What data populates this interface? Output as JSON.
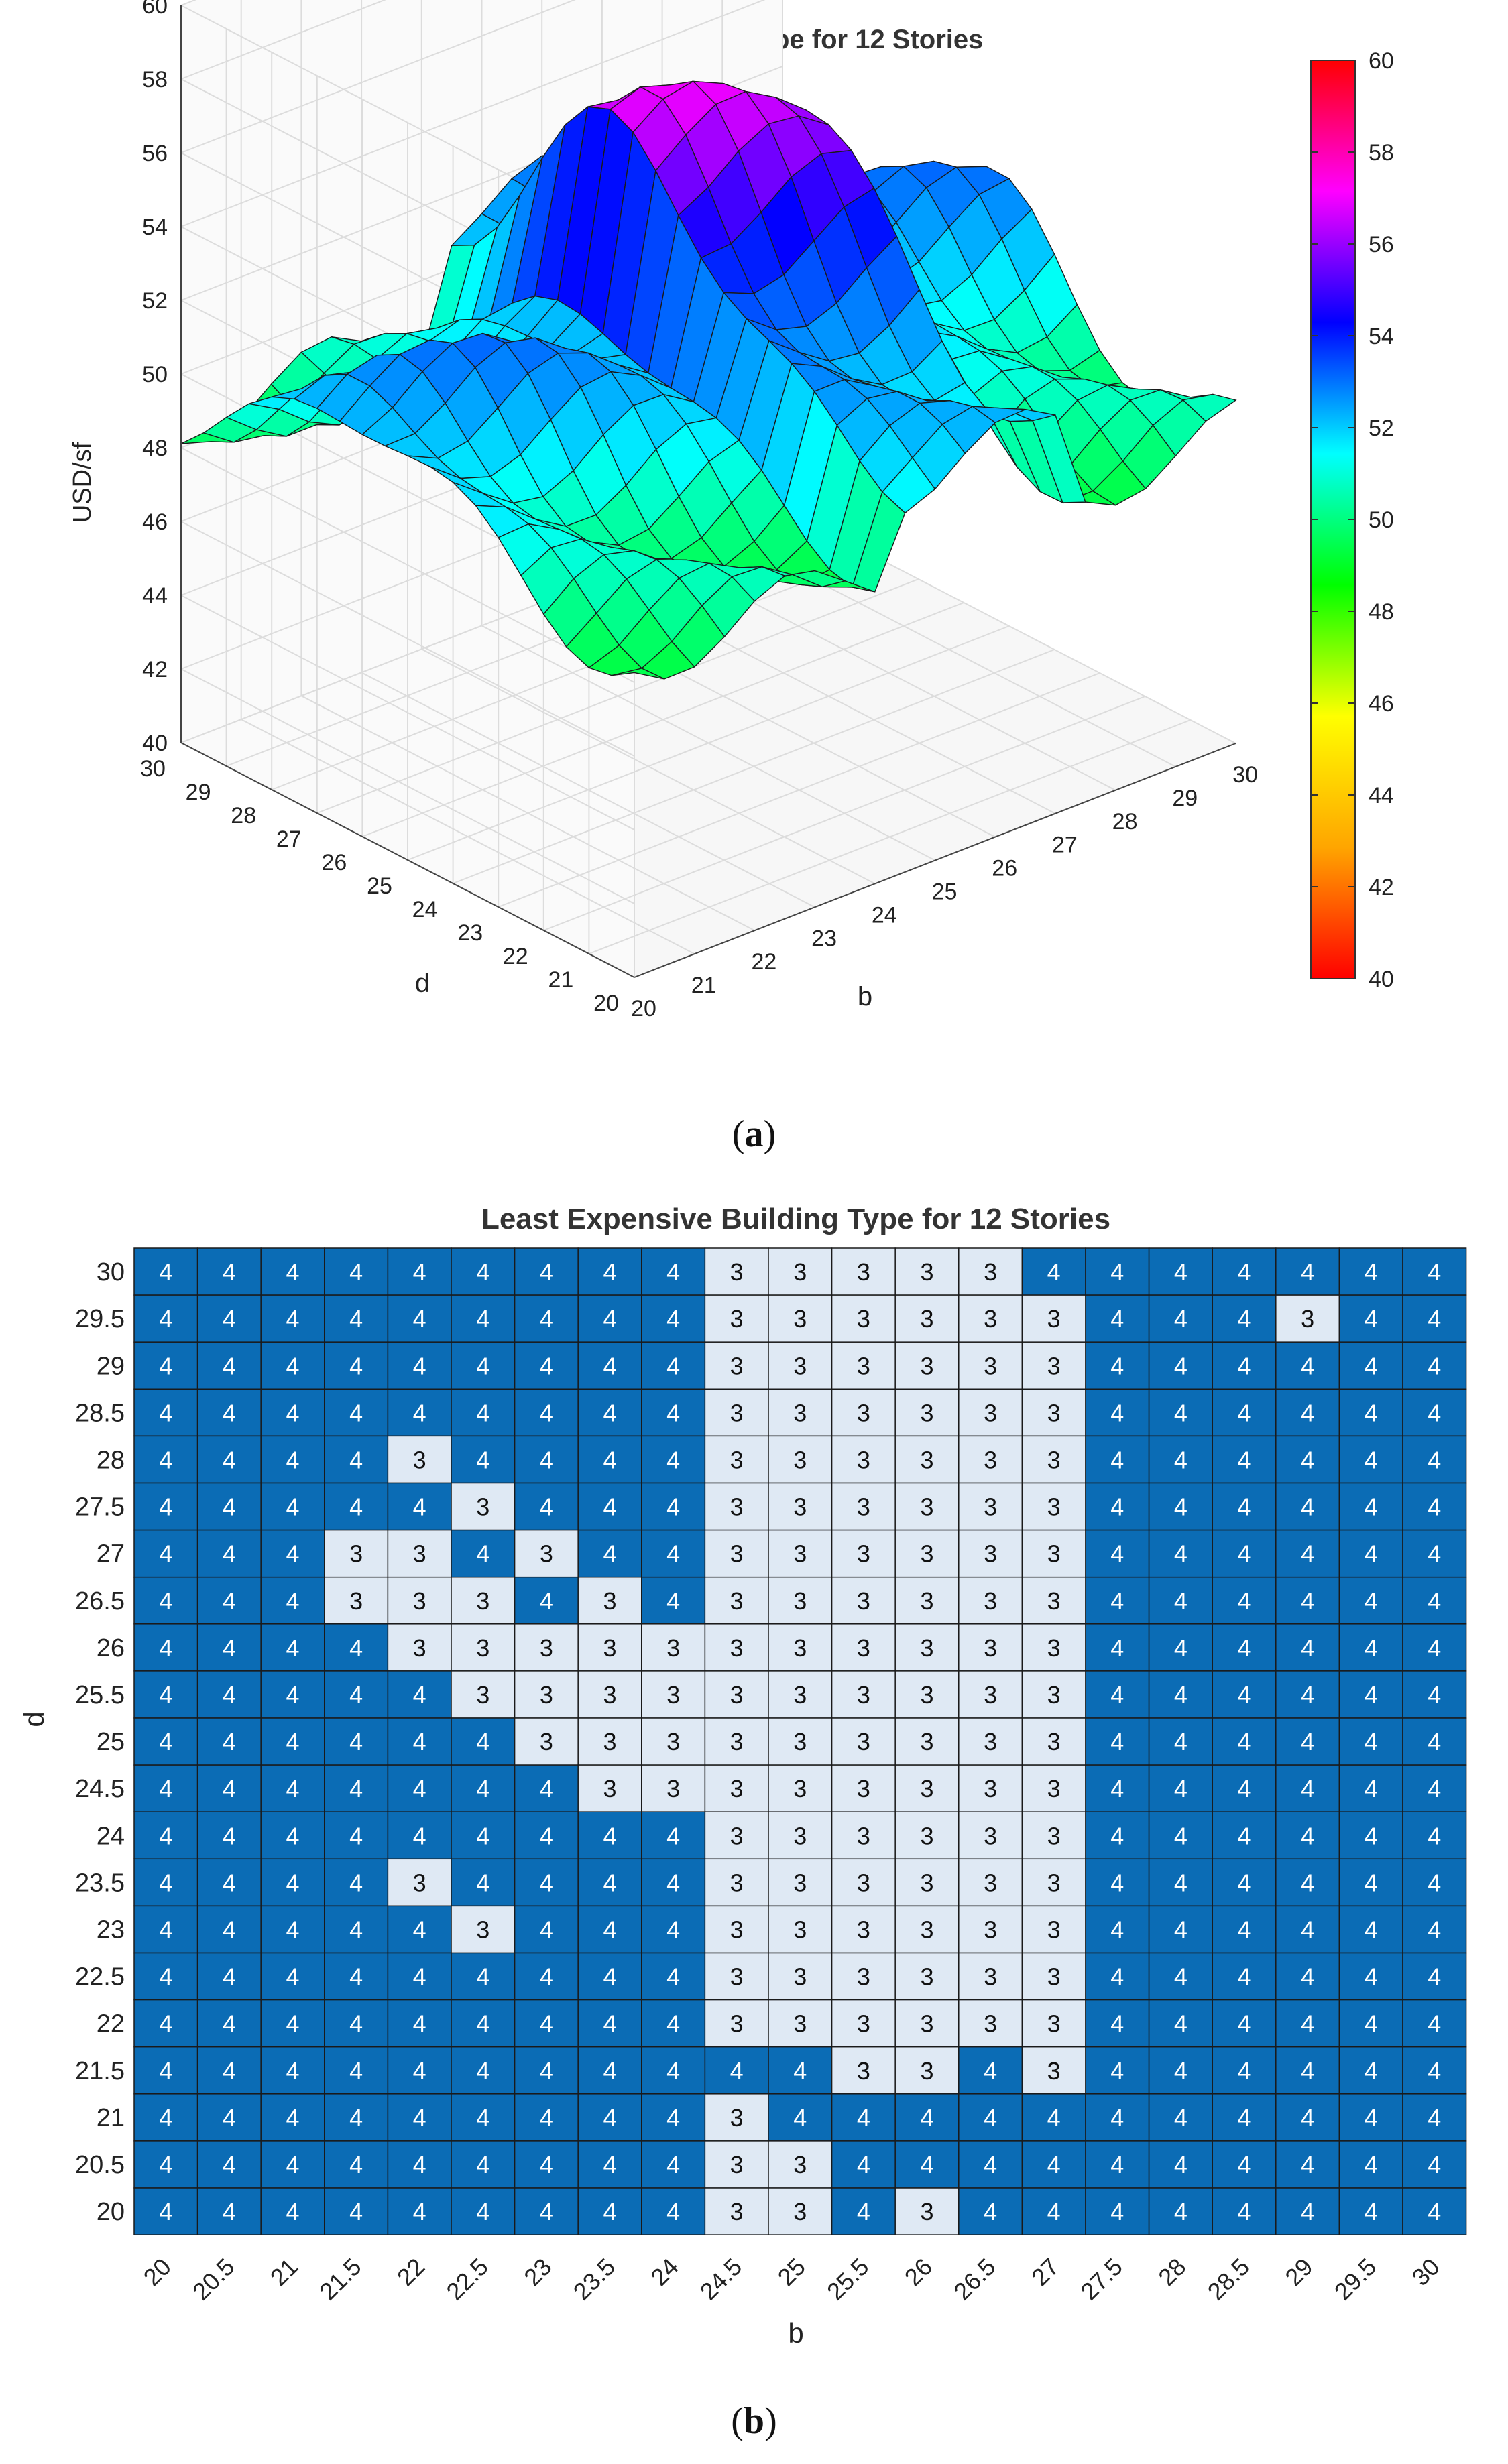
{
  "chart_data": [
    {
      "type": "surface",
      "title": "Least Expensive Building Type for 12 Stories",
      "xlabel": "b",
      "ylabel": "d",
      "zlabel": "USD/sf",
      "x_ticks": [
        "20",
        "21",
        "22",
        "23",
        "24",
        "25",
        "26",
        "27",
        "28",
        "29",
        "30"
      ],
      "y_ticks": [
        "20",
        "21",
        "22",
        "23",
        "24",
        "25",
        "26",
        "27",
        "28",
        "29",
        "30"
      ],
      "z_ticks": [
        "40",
        "42",
        "44",
        "46",
        "48",
        "50",
        "52",
        "54",
        "56",
        "58",
        "60"
      ],
      "zlim": [
        40,
        60
      ],
      "colorbar_ticks": [
        "40",
        "42",
        "44",
        "46",
        "48",
        "50",
        "52",
        "54",
        "56",
        "58",
        "60"
      ],
      "colorbar_range": [
        40,
        60
      ],
      "colormap": [
        "#ff0000",
        "#ffa500",
        "#ffff00",
        "#00ff00",
        "#00ffff",
        "#0000ff",
        "#ff00ff",
        "#ff0000"
      ]
    },
    {
      "type": "heatmap",
      "title": "Least Expensive Building Type for 12 Stories",
      "xlabel": "b",
      "ylabel": "d",
      "x": [
        "20",
        "20.5",
        "21",
        "21.5",
        "22",
        "22.5",
        "23",
        "23.5",
        "24",
        "24.5",
        "25",
        "25.5",
        "26",
        "26.5",
        "27",
        "27.5",
        "28",
        "28.5",
        "29",
        "29.5",
        "30"
      ],
      "y": [
        "30",
        "29.5",
        "29",
        "28.5",
        "28",
        "27.5",
        "27",
        "26.5",
        "26",
        "25.5",
        "25",
        "24.5",
        "24",
        "23.5",
        "23",
        "22.5",
        "22",
        "21.5",
        "21",
        "20.5",
        "20"
      ],
      "values": [
        [
          4,
          4,
          4,
          4,
          4,
          4,
          4,
          4,
          4,
          3,
          3,
          3,
          3,
          3,
          4,
          4,
          4,
          4,
          4,
          4,
          4
        ],
        [
          4,
          4,
          4,
          4,
          4,
          4,
          4,
          4,
          4,
          3,
          3,
          3,
          3,
          3,
          3,
          4,
          4,
          4,
          3,
          4,
          4
        ],
        [
          4,
          4,
          4,
          4,
          4,
          4,
          4,
          4,
          4,
          3,
          3,
          3,
          3,
          3,
          3,
          4,
          4,
          4,
          4,
          4,
          4
        ],
        [
          4,
          4,
          4,
          4,
          4,
          4,
          4,
          4,
          4,
          3,
          3,
          3,
          3,
          3,
          3,
          4,
          4,
          4,
          4,
          4,
          4
        ],
        [
          4,
          4,
          4,
          4,
          3,
          4,
          4,
          4,
          4,
          3,
          3,
          3,
          3,
          3,
          3,
          4,
          4,
          4,
          4,
          4,
          4
        ],
        [
          4,
          4,
          4,
          4,
          4,
          3,
          4,
          4,
          4,
          3,
          3,
          3,
          3,
          3,
          3,
          4,
          4,
          4,
          4,
          4,
          4
        ],
        [
          4,
          4,
          4,
          3,
          3,
          4,
          3,
          4,
          4,
          3,
          3,
          3,
          3,
          3,
          3,
          4,
          4,
          4,
          4,
          4,
          4
        ],
        [
          4,
          4,
          4,
          3,
          3,
          3,
          4,
          3,
          4,
          3,
          3,
          3,
          3,
          3,
          3,
          4,
          4,
          4,
          4,
          4,
          4
        ],
        [
          4,
          4,
          4,
          4,
          3,
          3,
          3,
          3,
          3,
          3,
          3,
          3,
          3,
          3,
          3,
          4,
          4,
          4,
          4,
          4,
          4
        ],
        [
          4,
          4,
          4,
          4,
          4,
          3,
          3,
          3,
          3,
          3,
          3,
          3,
          3,
          3,
          3,
          4,
          4,
          4,
          4,
          4,
          4
        ],
        [
          4,
          4,
          4,
          4,
          4,
          4,
          3,
          3,
          3,
          3,
          3,
          3,
          3,
          3,
          3,
          4,
          4,
          4,
          4,
          4,
          4
        ],
        [
          4,
          4,
          4,
          4,
          4,
          4,
          4,
          3,
          3,
          3,
          3,
          3,
          3,
          3,
          3,
          4,
          4,
          4,
          4,
          4,
          4
        ],
        [
          4,
          4,
          4,
          4,
          4,
          4,
          4,
          4,
          4,
          3,
          3,
          3,
          3,
          3,
          3,
          4,
          4,
          4,
          4,
          4,
          4
        ],
        [
          4,
          4,
          4,
          4,
          3,
          4,
          4,
          4,
          4,
          3,
          3,
          3,
          3,
          3,
          3,
          4,
          4,
          4,
          4,
          4,
          4
        ],
        [
          4,
          4,
          4,
          4,
          4,
          3,
          4,
          4,
          4,
          3,
          3,
          3,
          3,
          3,
          3,
          4,
          4,
          4,
          4,
          4,
          4
        ],
        [
          4,
          4,
          4,
          4,
          4,
          4,
          4,
          4,
          4,
          3,
          3,
          3,
          3,
          3,
          3,
          4,
          4,
          4,
          4,
          4,
          4
        ],
        [
          4,
          4,
          4,
          4,
          4,
          4,
          4,
          4,
          4,
          3,
          3,
          3,
          3,
          3,
          3,
          4,
          4,
          4,
          4,
          4,
          4
        ],
        [
          4,
          4,
          4,
          4,
          4,
          4,
          4,
          4,
          4,
          4,
          4,
          3,
          3,
          4,
          3,
          4,
          4,
          4,
          4,
          4,
          4
        ],
        [
          4,
          4,
          4,
          4,
          4,
          4,
          4,
          4,
          4,
          3,
          4,
          4,
          4,
          4,
          4,
          4,
          4,
          4,
          4,
          4,
          4
        ],
        [
          4,
          4,
          4,
          4,
          4,
          4,
          4,
          4,
          4,
          3,
          3,
          4,
          4,
          4,
          4,
          4,
          4,
          4,
          4,
          4,
          4
        ],
        [
          4,
          4,
          4,
          4,
          4,
          4,
          4,
          4,
          4,
          3,
          3,
          4,
          3,
          4,
          4,
          4,
          4,
          4,
          4,
          4,
          4
        ]
      ],
      "colors": {
        "3": "#dfe9f4",
        "4": "#0b6cb5"
      }
    }
  ],
  "captions": {
    "a": {
      "open": "(",
      "letter": "a",
      "close": ")"
    },
    "b": {
      "open": "(",
      "letter": "b",
      "close": ")"
    }
  }
}
